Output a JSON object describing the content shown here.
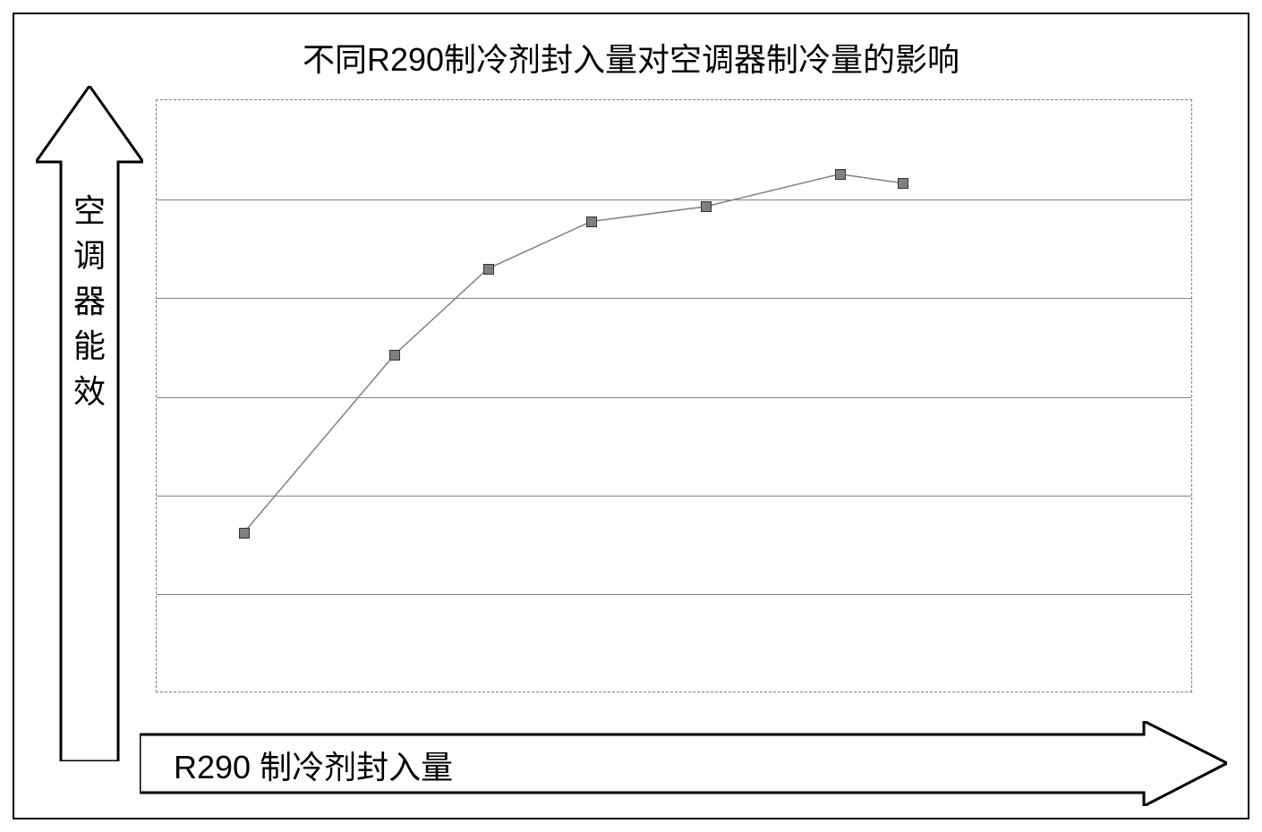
{
  "chart": {
    "type": "line",
    "title": "不同R290制冷剂封入量对空调器制冷量的影响",
    "title_fontsize": 36,
    "xlabel": "R290 制冷剂封入量",
    "ylabel": "空调器能效",
    "label_fontsize": 36,
    "xlim": [
      0,
      100
    ],
    "ylim": [
      0,
      100
    ],
    "gridlines_y": [
      16.67,
      33.33,
      50,
      66.67,
      83.33
    ],
    "grid_color": "#808080",
    "border_color": "#808080",
    "border_style": "dashed",
    "background_color": "#ffffff",
    "outer_border_color": "#000000",
    "text_color": "#000000",
    "line_color": "#808080",
    "line_width": 1.5,
    "marker_style": "square",
    "marker_size": 12,
    "marker_fill": "#808080",
    "marker_border": "#333333",
    "data_points": [
      {
        "x": 8.5,
        "y": 27
      },
      {
        "x": 23,
        "y": 57
      },
      {
        "x": 32,
        "y": 71.5
      },
      {
        "x": 42,
        "y": 79.5
      },
      {
        "x": 53,
        "y": 82
      },
      {
        "x": 66,
        "y": 87.5
      },
      {
        "x": 72,
        "y": 86
      }
    ],
    "arrow_fill": "#ffffff",
    "arrow_stroke": "#000000",
    "arrow_stroke_width": 3
  }
}
